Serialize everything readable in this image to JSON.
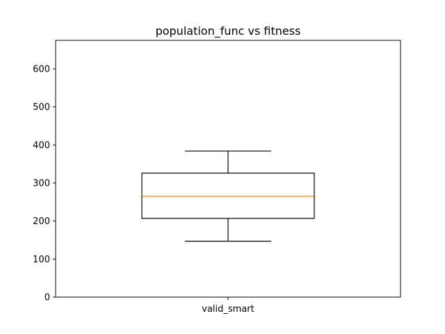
{
  "chart_data": {
    "type": "box",
    "title": "population_func vs fitness",
    "xlabel": "",
    "ylabel": "",
    "categories": [
      "valid_smart"
    ],
    "boxes": [
      {
        "category": "valid_smart",
        "whisker_low": 147,
        "q1": 207,
        "median": 265,
        "q3": 326,
        "whisker_high": 384
      }
    ],
    "ylim": [
      0,
      675
    ],
    "yticks": [
      0,
      100,
      200,
      300,
      400,
      500,
      600
    ],
    "grid": false,
    "colors": {
      "median": "#ff7f0e",
      "box": "#000000"
    }
  }
}
